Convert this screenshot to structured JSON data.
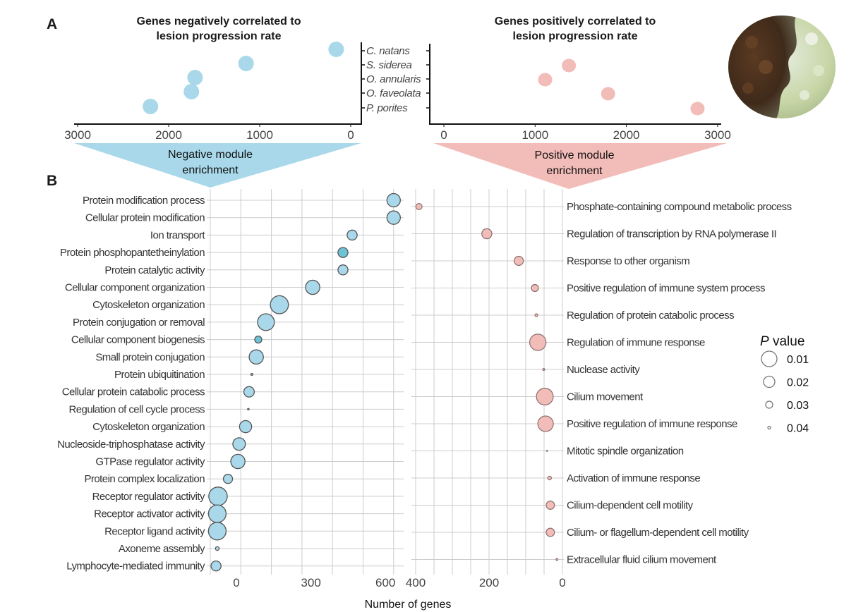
{
  "panel_labels": {
    "a": "A",
    "b": "B"
  },
  "colors": {
    "negative": "#a8d8ea",
    "negative_dark": "#6cc3d5",
    "positive": "#f2bcb8",
    "bubble_stroke": "#555555",
    "grid": "#cccccc"
  },
  "chart_data": [
    {
      "type": "scatter",
      "id": "negative-correlation",
      "title_lines": [
        "Genes negatively correlated to",
        "lesion progression rate"
      ],
      "categories": [
        "C. natans",
        "S. siderea",
        "O. annularis",
        "O. faveolata",
        "P. porites"
      ],
      "values": [
        160,
        1150,
        1710,
        1750,
        2200
      ],
      "xlim": [
        3000,
        0
      ],
      "xticks": [
        "3000",
        "2000",
        "1000",
        "0"
      ],
      "xtick_values": [
        3000,
        2000,
        1000,
        0
      ],
      "axis_reversed": true
    },
    {
      "type": "scatter",
      "id": "positive-correlation",
      "title_lines": [
        "Genes positively correlated to",
        "lesion progression rate"
      ],
      "categories": [
        "C. natans",
        "S. siderea",
        "O. annularis",
        "O. faveolata",
        "P. porites"
      ],
      "values": [
        null,
        1370,
        1110,
        1800,
        2780
      ],
      "xlim": [
        0,
        3000
      ],
      "xticks": [
        "0",
        "1000",
        "2000",
        "3000"
      ],
      "xtick_values": [
        0,
        1000,
        2000,
        3000
      ]
    },
    {
      "type": "scatter",
      "id": "negative-module-enrichment",
      "banner_lines": [
        "Negative module",
        "enrichment"
      ],
      "categories": [
        "Protein modification process",
        "Cellular protein modification",
        "Ion transport",
        "Protein phosphopantetheinylation",
        "Protein catalytic activity",
        "Cellular component organization",
        "Cytoskeleton organization",
        "Protein conjugation or removal",
        "Cellular component biogenesis",
        "Small protein conjugation",
        "Protein ubiquitination",
        "Cellular protein catabolic process",
        "Regulation of cell cycle process",
        "Cytoskeleton organization",
        "Nucleoside-triphosphatase activity",
        "GTPase regulator activity",
        "Protein complex localization",
        "Receptor regulator activity",
        "Receptor activator activity",
        "Receptor ligand activity",
        "Axoneme assembly",
        "Lymphocyte-mediated immunity"
      ],
      "values": [
        633,
        633,
        466,
        429,
        429,
        307,
        173,
        119,
        88,
        80,
        62,
        51,
        48,
        37,
        11,
        6,
        -34,
        -74,
        -77,
        -77,
        -77,
        -82
      ],
      "p_values": [
        0.015,
        0.015,
        0.023,
        0.023,
        0.023,
        0.013,
        0.004,
        0.007,
        0.03,
        0.013,
        0.042,
        0.022,
        0.043,
        0.018,
        0.017,
        0.013,
        0.025,
        0.003,
        0.005,
        0.005,
        0.038,
        0.023
      ],
      "highlight": [
        false,
        false,
        false,
        true,
        false,
        false,
        false,
        false,
        true,
        false,
        false,
        false,
        false,
        false,
        false,
        false,
        false,
        false,
        false,
        false,
        false,
        false
      ],
      "xticks": [
        "0",
        "300",
        "600"
      ],
      "xtick_values": [
        0,
        300,
        600
      ],
      "grid": true
    },
    {
      "type": "scatter",
      "id": "positive-module-enrichment",
      "banner_lines": [
        "Positive module",
        "enrichment"
      ],
      "categories": [
        "Phosphate-containing compound metabolic process",
        "Regulation of transcription by RNA polymerase II",
        "Response to other organism",
        "Positive regulation of immune system process",
        "Regulation of protein catabolic process",
        "Regulation of immune response",
        "Nuclease activity",
        "Cilium movement",
        "Positive regulation of immune response",
        "Mitotic spindle organization",
        "Activation of immune response",
        "Cilium-dependent cell motility",
        "Cilium- or flagellum-dependent cell motility",
        "Extracellular fluid cilium movement"
      ],
      "values": [
        391,
        206,
        119,
        75,
        71,
        67,
        51,
        48,
        46,
        42,
        35,
        33,
        33,
        15
      ],
      "p_values": [
        0.032,
        0.023,
        0.025,
        0.03,
        0.04,
        0.008,
        0.042,
        0.007,
        0.01,
        0.044,
        0.038,
        0.027,
        0.027,
        0.042
      ],
      "xticks": [
        "400",
        "200",
        "0"
      ],
      "xtick_values": [
        400,
        200,
        0
      ],
      "axis_reversed": true,
      "grid": true
    }
  ],
  "shared_xlabel": "Number of genes",
  "legend": {
    "title_italic": "P",
    "title_rest": " value",
    "entries": [
      {
        "label": "0.01",
        "p": 0.01
      },
      {
        "label": "0.02",
        "p": 0.02
      },
      {
        "label": "0.03",
        "p": 0.03
      },
      {
        "label": "0.04",
        "p": 0.04
      }
    ],
    "placement": "right"
  }
}
